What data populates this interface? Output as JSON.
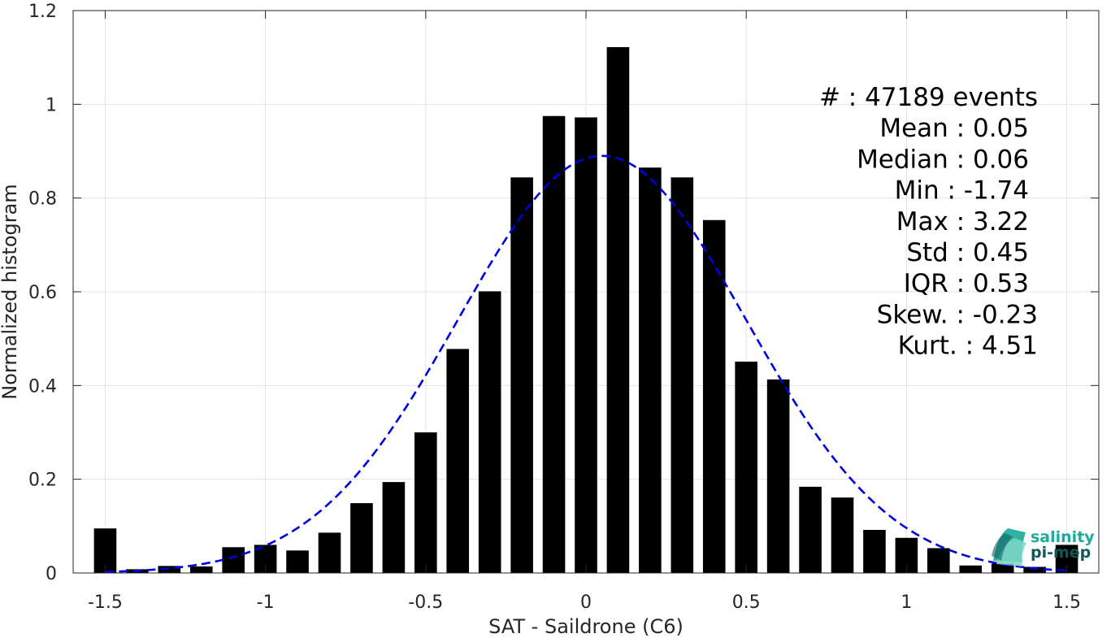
{
  "chart_data": {
    "type": "bar",
    "xlabel": "SAT - Saildrone (C6)",
    "ylabel": "Normalized histogram",
    "xlim": [
      -1.6,
      1.6
    ],
    "ylim": [
      0,
      1.2
    ],
    "grid": true,
    "x_ticks": [
      -1.5,
      -1,
      -0.5,
      0,
      0.5,
      1,
      1.5
    ],
    "x_tick_labels": [
      "-1.5",
      "-1",
      "-0.5",
      "0",
      "0.5",
      "1",
      "1.5"
    ],
    "y_ticks": [
      0,
      0.2,
      0.4,
      0.6,
      0.8,
      1,
      1.2
    ],
    "y_tick_labels": [
      "0",
      "0.2",
      "0.4",
      "0.6",
      "0.8",
      "1",
      "1.2"
    ],
    "bin_width": 0.1,
    "bar_fraction": 0.7,
    "bar_color": "#000000",
    "x": [
      -1.5,
      -1.4,
      -1.3,
      -1.2,
      -1.1,
      -1.0,
      -0.9,
      -0.8,
      -0.7,
      -0.6,
      -0.5,
      -0.4,
      -0.3,
      -0.2,
      -0.1,
      0.0,
      0.1,
      0.2,
      0.3,
      0.4,
      0.5,
      0.6,
      0.7,
      0.8,
      0.9,
      1.0,
      1.1,
      1.2,
      1.3,
      1.4,
      1.5
    ],
    "values": [
      0.095,
      0.008,
      0.015,
      0.014,
      0.055,
      0.06,
      0.048,
      0.086,
      0.149,
      0.194,
      0.3,
      0.478,
      0.601,
      0.844,
      0.975,
      0.972,
      1.122,
      0.865,
      0.844,
      0.753,
      0.451,
      0.413,
      0.184,
      0.161,
      0.092,
      0.075,
      0.053,
      0.016,
      0.02,
      0.013,
      0.06
    ],
    "fit": {
      "type": "gaussian",
      "mean": 0.05,
      "std": 0.45,
      "peak": 0.89,
      "x_range": [
        -1.5,
        1.5
      ],
      "color": "#0000dd",
      "style": "dashed"
    },
    "annotations": [
      {
        "key": "#",
        "sep": " : ",
        "value": "47189 events"
      },
      {
        "key": "Mean",
        "sep": " : ",
        "value": "0.05"
      },
      {
        "key": "Median",
        "sep": " : ",
        "value": "0.06"
      },
      {
        "key": "Min",
        "sep": " : ",
        "value": "-1.74"
      },
      {
        "key": "Max",
        "sep": " : ",
        "value": "3.22"
      },
      {
        "key": "Std",
        "sep": " : ",
        "value": "0.45"
      },
      {
        "key": "IQR",
        "sep": " : ",
        "value": "0.53"
      },
      {
        "key": "Skew.",
        "sep": " : ",
        "value": "-0.23"
      },
      {
        "key": "Kurt.",
        "sep": " : ",
        "value": "4.51"
      }
    ]
  },
  "logo": {
    "line1": "salinity",
    "line2": "pi-mep",
    "color": "#1aab9b",
    "dark_color": "#11575a"
  }
}
